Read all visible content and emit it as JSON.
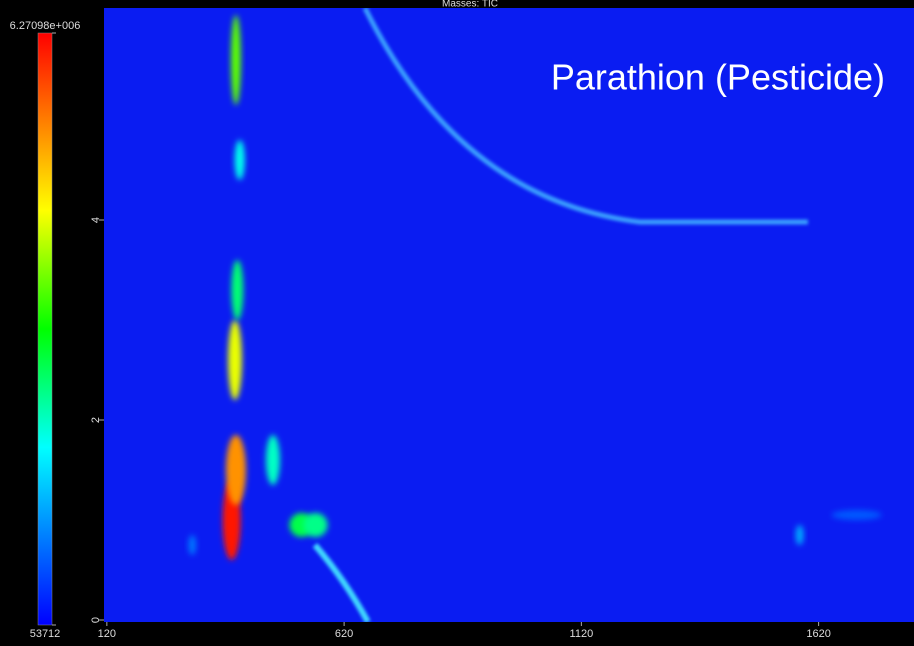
{
  "chart_data": {
    "type": "heatmap",
    "title": "Masses: TIC",
    "annotation": "Parathion (Pesticide)",
    "xlim": [
      114,
      1821
    ],
    "xticks": [
      120,
      620,
      1120,
      1620
    ],
    "ylim": [
      0,
      6.12
    ],
    "yticks": [
      0,
      2,
      4
    ],
    "colorbar": {
      "lim": [
        53712,
        6270980
      ],
      "ticks": [
        {
          "value": 6270980,
          "label": "6.27098e+006"
        },
        53712
      ]
    },
    "peaks": {
      "x": [
        383,
        392,
        390,
        395,
        392,
        400,
        300,
        470,
        530,
        560,
        1580,
        1700
      ],
      "y": [
        1.0,
        1.5,
        2.6,
        3.3,
        5.6,
        4.6,
        0.75,
        1.6,
        0.95,
        0.95,
        0.85,
        1.05
      ],
      "values": [
        6100000,
        5200000,
        4300000,
        2600000,
        3600000,
        2000000,
        900000,
        2200000,
        2800000,
        2500000,
        1300000,
        700000
      ]
    }
  }
}
